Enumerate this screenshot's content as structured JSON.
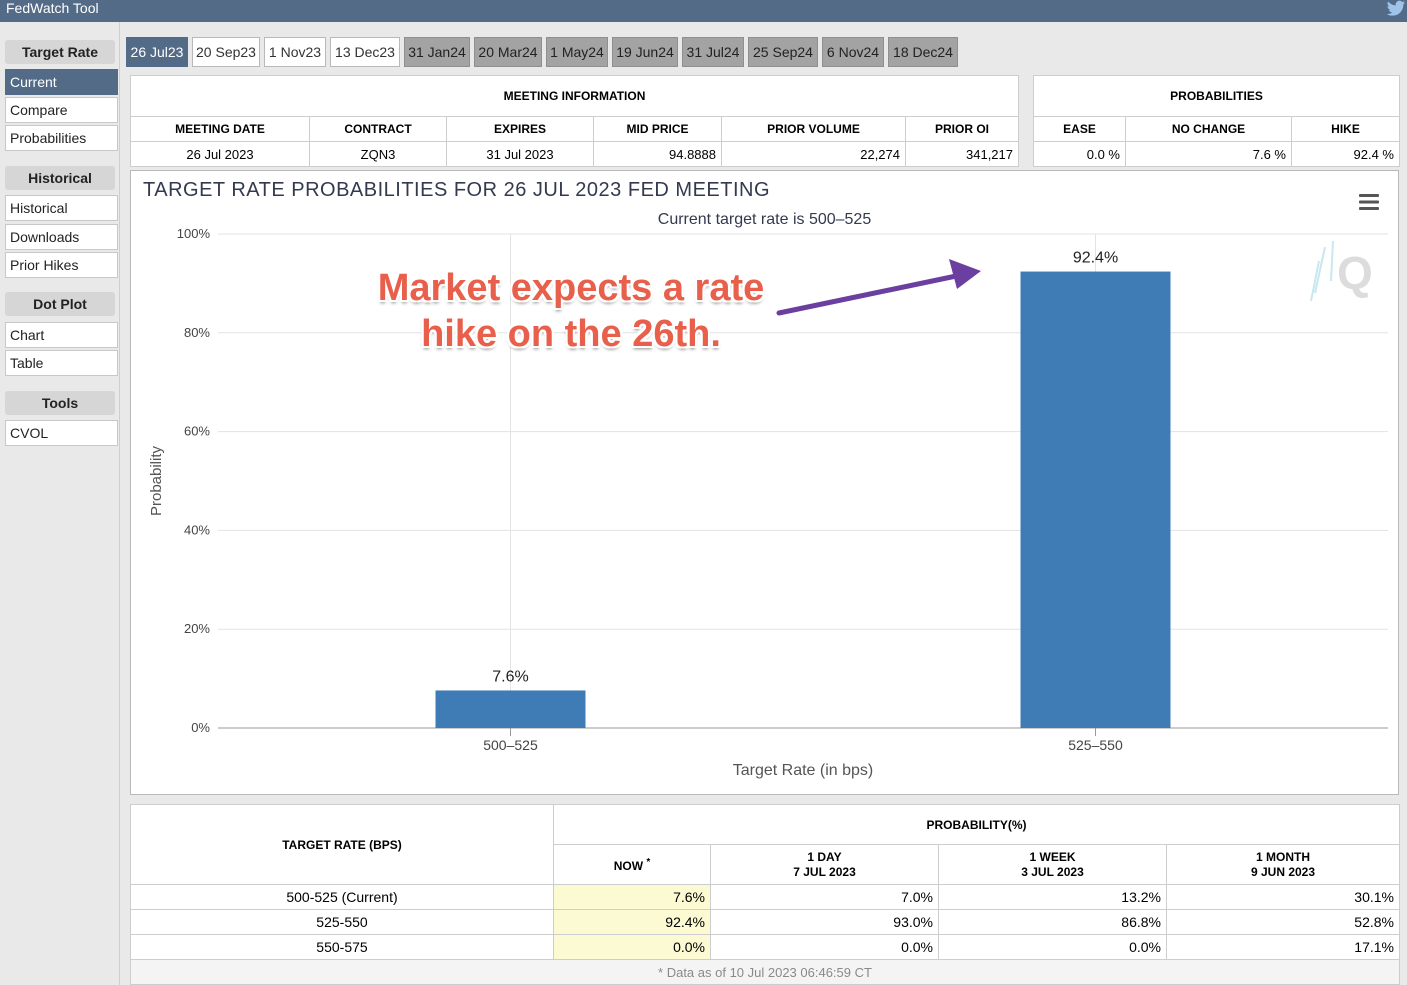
{
  "app": {
    "title": "FedWatch Tool",
    "twitter_icon": "twitter-icon"
  },
  "sidebar": {
    "sections": [
      {
        "head": "Target Rate",
        "items": [
          "Current",
          "Compare",
          "Probabilities"
        ]
      },
      {
        "head": "Historical",
        "items": [
          "Historical",
          "Downloads",
          "Prior Hikes"
        ]
      },
      {
        "head": "Dot Plot",
        "items": [
          "Chart",
          "Table"
        ]
      },
      {
        "head": "Tools",
        "items": [
          "CVOL"
        ]
      }
    ],
    "active_item": "Current"
  },
  "tabs": [
    "26 Jul23",
    "20 Sep23",
    "1 Nov23",
    "13 Dec23",
    "31 Jan24",
    "20 Mar24",
    "1 May24",
    "19 Jun24",
    "31 Jul24",
    "25 Sep24",
    "6 Nov24",
    "18 Dec24"
  ],
  "meeting_info": {
    "title": "MEETING INFORMATION",
    "headers": [
      "MEETING DATE",
      "CONTRACT",
      "EXPIRES",
      "MID PRICE",
      "PRIOR VOLUME",
      "PRIOR OI"
    ],
    "values": [
      "26 Jul 2023",
      "ZQN3",
      "31 Jul 2023",
      "94.8888",
      "22,274",
      "341,217"
    ]
  },
  "probabilities": {
    "title": "PROBABILITIES",
    "headers": [
      "EASE",
      "NO CHANGE",
      "HIKE"
    ],
    "values": [
      "0.0 %",
      "7.6 %",
      "92.4 %"
    ]
  },
  "chart": {
    "menu_icon": "hamburger-menu-icon",
    "watermark_icon": "cme-q-logo-icon"
  },
  "chart_data": {
    "type": "bar",
    "title": "TARGET RATE PROBABILITIES FOR 26 JUL 2023 FED MEETING",
    "subtitle": "Current target rate is 500–525",
    "xlabel": "Target Rate (in bps)",
    "ylabel": "Probability",
    "categories": [
      "500–525",
      "525–550"
    ],
    "values": [
      7.6,
      92.4
    ],
    "data_labels": [
      "7.6%",
      "92.4%"
    ],
    "ylim": [
      0,
      100
    ],
    "yticks": [
      0,
      20,
      40,
      60,
      80,
      100
    ],
    "ytick_labels": [
      "0%",
      "20%",
      "40%",
      "60%",
      "80%",
      "100%"
    ],
    "bar_color": "#3f7cb5",
    "grid": true
  },
  "annotation": {
    "text": "Market expects a rate hike on the 26th.",
    "color": "#e8604c",
    "arrow_color": "#6b3fa0"
  },
  "prob_table": {
    "rate_header": "TARGET RATE (BPS)",
    "prob_header": "PROBABILITY(%)",
    "columns": [
      {
        "label": "NOW",
        "sub": ""
      },
      {
        "label": "1 DAY",
        "sub": "7 JUL 2023"
      },
      {
        "label": "1 WEEK",
        "sub": "3 JUL 2023"
      },
      {
        "label": "1 MONTH",
        "sub": "9 JUN 2023"
      }
    ],
    "now_marker": "*",
    "rows": [
      {
        "rate": "500-525 (Current)",
        "values": [
          "7.6%",
          "7.0%",
          "13.2%",
          "30.1%"
        ]
      },
      {
        "rate": "525-550",
        "values": [
          "92.4%",
          "93.0%",
          "86.8%",
          "52.8%"
        ]
      },
      {
        "rate": "550-575",
        "values": [
          "0.0%",
          "0.0%",
          "0.0%",
          "17.1%"
        ]
      }
    ],
    "footnote": "* Data as of 10 Jul 2023 06:46:59 CT"
  }
}
